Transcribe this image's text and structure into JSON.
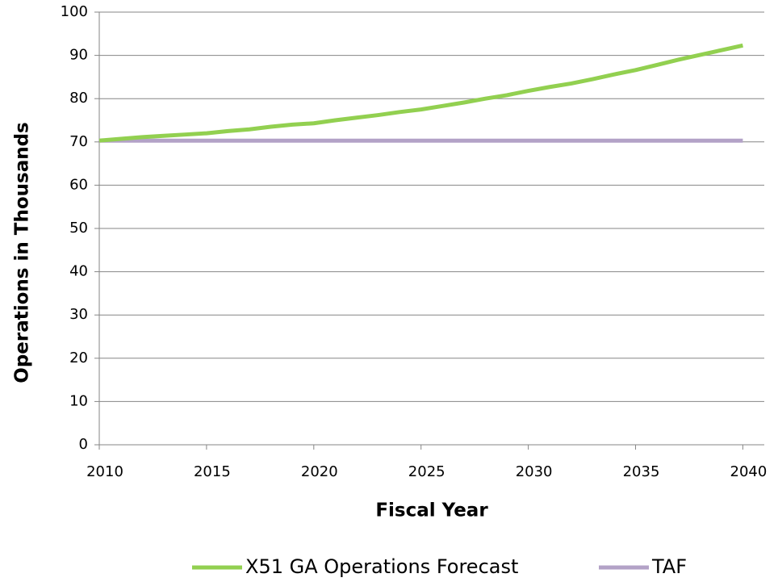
{
  "chart_data": {
    "type": "line",
    "x_label": "Fiscal Year",
    "y_label": "Operations in Thousands",
    "x": [
      2010,
      2011,
      2012,
      2013,
      2014,
      2015,
      2016,
      2017,
      2018,
      2019,
      2020,
      2021,
      2022,
      2023,
      2024,
      2025,
      2026,
      2027,
      2028,
      2029,
      2030,
      2031,
      2032,
      2033,
      2034,
      2035,
      2036,
      2037,
      2038,
      2039,
      2040
    ],
    "series": [
      {
        "name": "X51 GA Operations Forecast",
        "color": "#92d050",
        "values": [
          70.3,
          70.7,
          71.1,
          71.4,
          71.7,
          72.0,
          72.5,
          72.9,
          73.5,
          74.0,
          74.3,
          75.0,
          75.6,
          76.2,
          76.9,
          77.5,
          78.3,
          79.1,
          80.0,
          80.8,
          81.8,
          82.7,
          83.5,
          84.5,
          85.6,
          86.6,
          87.8,
          89.0,
          90.1,
          91.2,
          92.3
        ]
      },
      {
        "name": "TAF",
        "color": "#b3a2c7",
        "values": [
          70.3,
          70.3,
          70.3,
          70.3,
          70.3,
          70.3,
          70.3,
          70.3,
          70.3,
          70.3,
          70.3,
          70.3,
          70.3,
          70.3,
          70.3,
          70.3,
          70.3,
          70.3,
          70.3,
          70.3,
          70.3,
          70.3,
          70.3,
          70.3,
          70.3,
          70.3,
          70.3,
          70.3,
          70.3,
          70.3,
          70.3
        ]
      }
    ],
    "xlim": [
      2010,
      2041
    ],
    "xticks": [
      2010,
      2015,
      2020,
      2025,
      2030,
      2035,
      2040
    ],
    "ylim": [
      0,
      100
    ],
    "yticks": [
      0,
      10,
      20,
      30,
      40,
      50,
      60,
      70,
      80,
      90,
      100
    ],
    "grid": true,
    "legend": "bottom"
  }
}
